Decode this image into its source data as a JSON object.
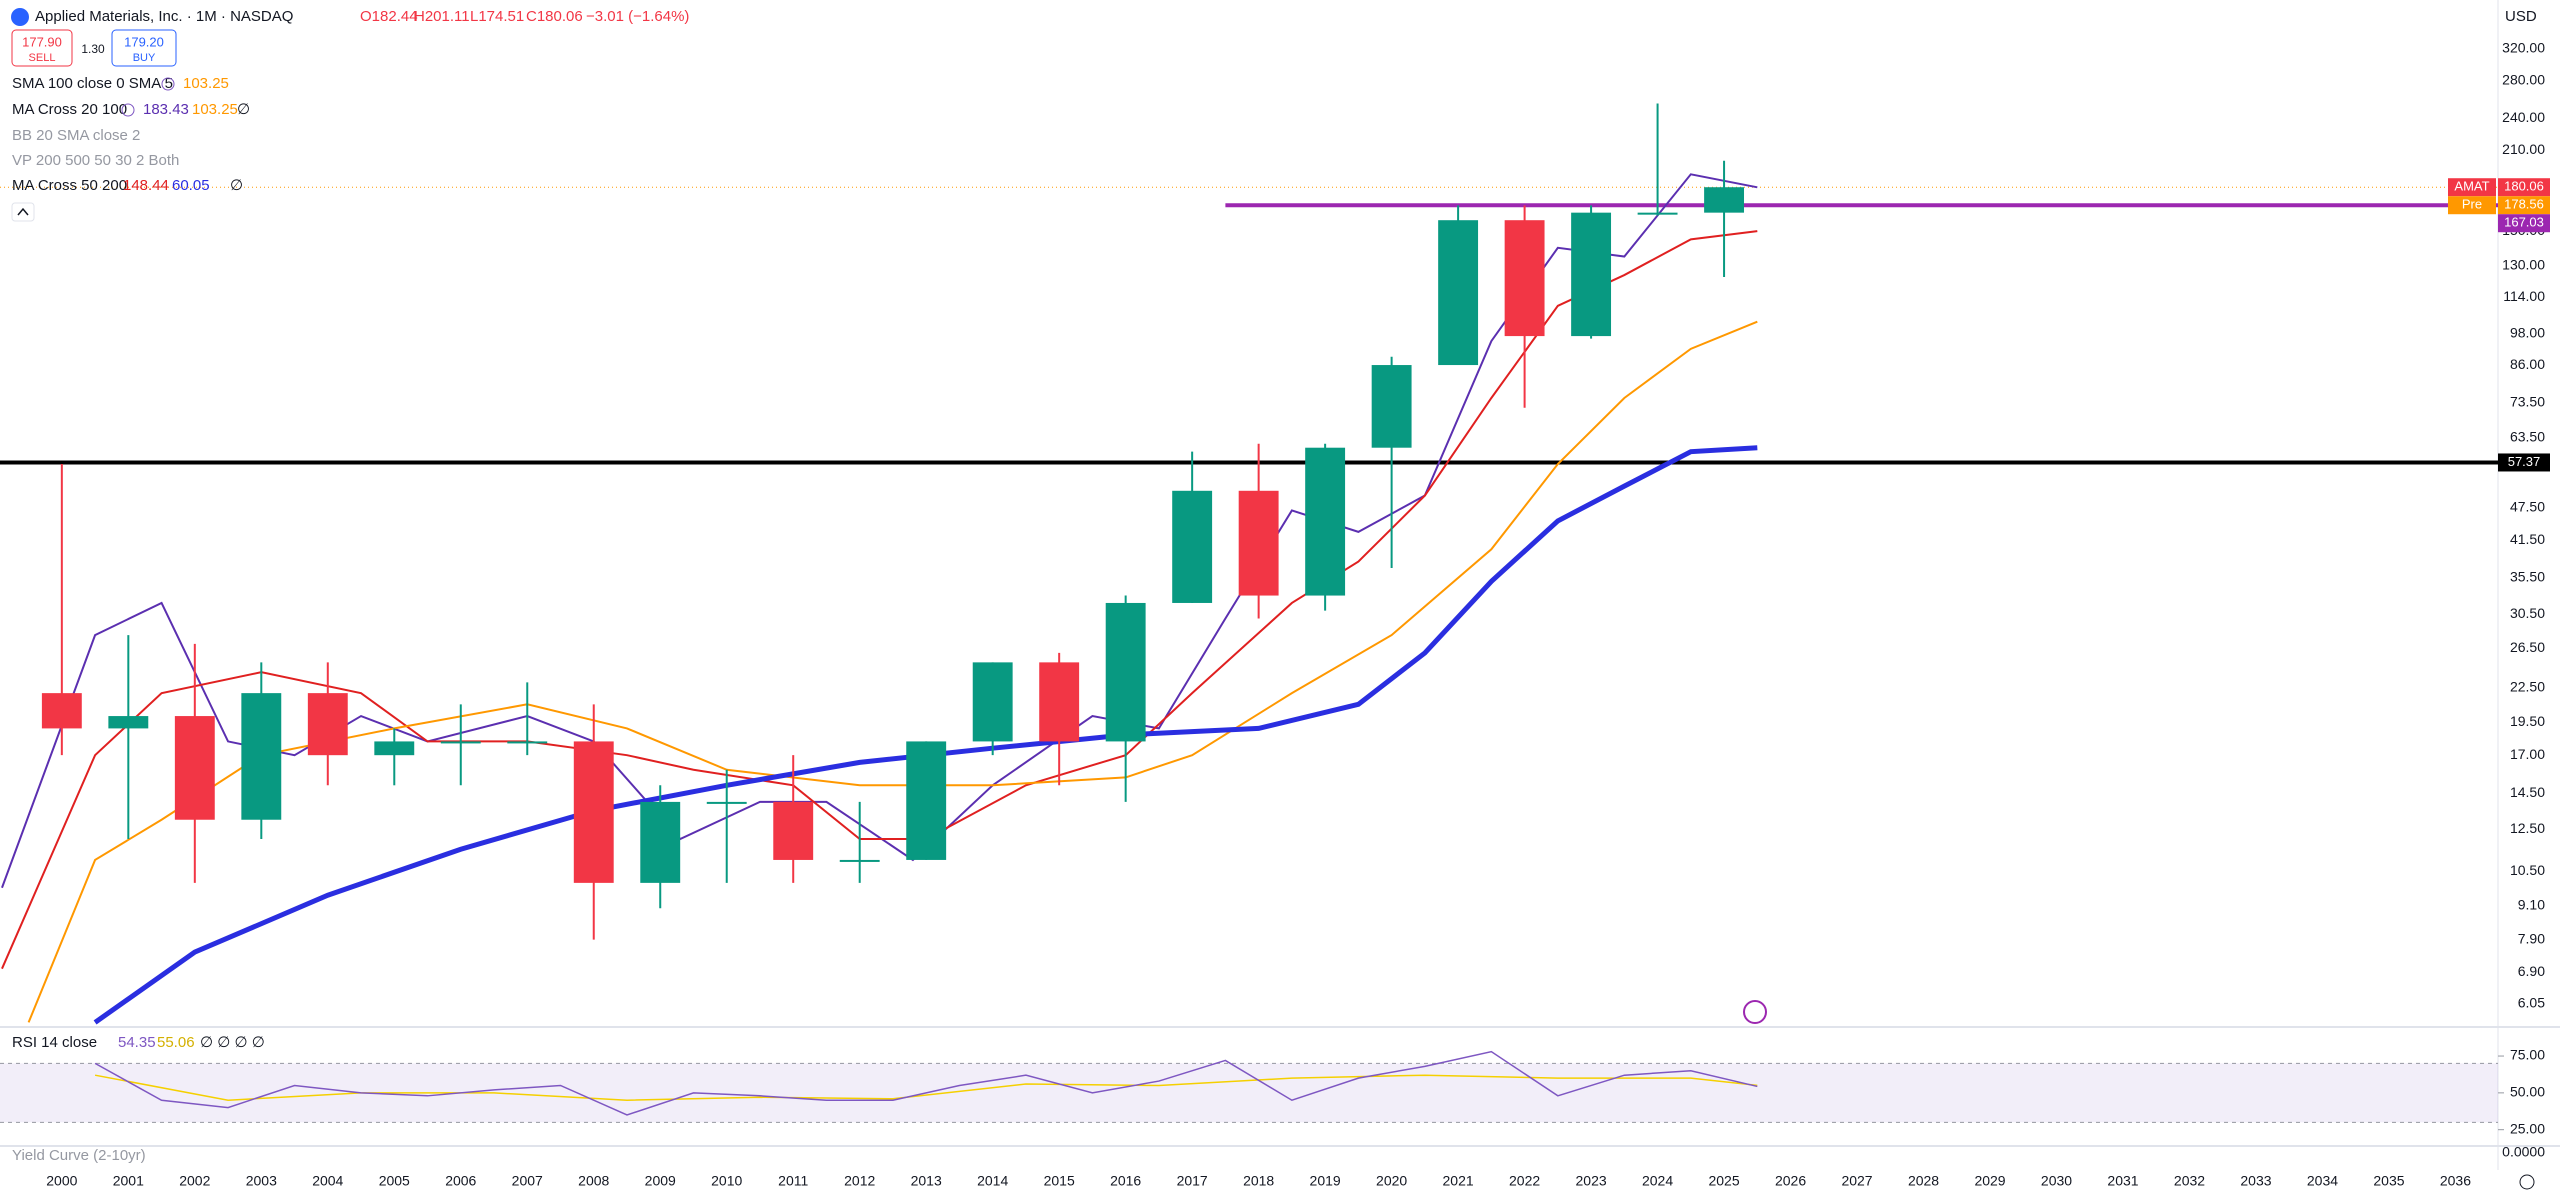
{
  "header": {
    "title": "Applied Materials, Inc. · 1M · NASDAQ",
    "open": "O182.44",
    "high": "H201.11",
    "low": "L174.51",
    "close": "C180.06",
    "change": "−3.01 (−1.64%)",
    "currency": "USD"
  },
  "trade": {
    "sell_price": "177.90",
    "sell": "SELL",
    "spread": "1.30",
    "buy_price": "179.20",
    "buy": "BUY"
  },
  "legend": [
    {
      "label": "SMA 100 close 0 SMA 5",
      "values": [
        "103.25"
      ]
    },
    {
      "label": "MA Cross 20 100",
      "values": [
        "183.43",
        "103.25",
        "∅"
      ]
    },
    {
      "label": "BB 20 SMA close 2"
    },
    {
      "label": "VP 200 500 50 30 2 Both"
    },
    {
      "label": "MA Cross 50 200",
      "values": [
        "148.44",
        "60.05",
        "∅"
      ]
    }
  ],
  "chart_data": {
    "type": "candlestick",
    "x": [
      2000,
      2001,
      2002,
      2003,
      2004,
      2005,
      2006,
      2007,
      2008,
      2009,
      2010,
      2011,
      2012,
      2013,
      2014,
      2015,
      2016,
      2017,
      2018,
      2019,
      2020,
      2021,
      2022,
      2023,
      2024,
      2025
    ],
    "open": [
      22,
      19,
      20,
      13,
      22,
      17,
      18,
      18,
      18,
      10,
      14,
      14,
      11,
      11,
      18,
      25,
      18,
      32,
      51,
      33,
      61,
      86,
      157,
      97,
      162,
      162
    ],
    "high": [
      57,
      28,
      27,
      25,
      25,
      19,
      21,
      23,
      21,
      15,
      16,
      17,
      14,
      18,
      25,
      26,
      33,
      60,
      62,
      62,
      89,
      167,
      167,
      167,
      255,
      201
    ],
    "low": [
      17,
      12,
      10,
      12,
      15,
      15,
      15,
      17,
      7.9,
      9,
      10,
      10,
      10,
      11,
      17,
      15,
      14,
      32,
      30,
      31,
      37,
      86,
      72,
      96,
      160,
      124
    ],
    "close": [
      19,
      20,
      13,
      22,
      17,
      18,
      18,
      18,
      10,
      14,
      14,
      11,
      11,
      18,
      25,
      18,
      32,
      51,
      33,
      61,
      86,
      157,
      97,
      162,
      162,
      180.06
    ],
    "up_color": "#089981",
    "down_color": "#f23645",
    "series": [
      {
        "color": "#5b2fb0",
        "width": 2,
        "x": [
          1999.1,
          2000.5,
          2001.5,
          2002.5,
          2003.5,
          2004.5,
          2005.5,
          2007,
          2008,
          2009.3,
          2010.5,
          2011.5,
          2012.8,
          2014,
          2015.5,
          2016.5,
          2017.5,
          2018.5,
          2019.5,
          2020.5,
          2021.5,
          2022.5,
          2023.5,
          2024.5,
          2025.5
        ],
        "values": [
          9.8,
          28,
          32,
          18,
          17,
          20,
          18,
          20,
          18,
          12,
          14,
          14,
          11,
          15,
          20,
          19,
          30,
          47,
          43,
          50,
          95,
          140,
          135,
          190,
          180
        ]
      },
      {
        "color": "#e02020",
        "width": 2,
        "x": [
          1999.1,
          2000.5,
          2001.5,
          2003,
          2004.5,
          2005.5,
          2007,
          2008.5,
          2009.5,
          2011,
          2012,
          2013,
          2014.5,
          2016,
          2017,
          2018.5,
          2019.5,
          2020.5,
          2021.5,
          2022.5,
          2023.5,
          2024.5,
          2025.5
        ],
        "values": [
          7,
          17,
          22,
          24,
          22,
          18,
          18,
          17,
          16,
          15,
          12,
          12,
          15,
          17,
          22,
          32,
          38,
          50,
          75,
          110,
          125,
          145,
          150
        ]
      },
      {
        "color": "#ff9800",
        "width": 2,
        "x": [
          1999.5,
          2000.5,
          2001.5,
          2003,
          2005,
          2007,
          2008.5,
          2010,
          2012,
          2014,
          2016,
          2017,
          2018.5,
          2020,
          2021.5,
          2022.5,
          2023.5,
          2024.5,
          2025.5
        ],
        "values": [
          5.6,
          11,
          13,
          17,
          19,
          21,
          19,
          16,
          15,
          15,
          15.5,
          17,
          22,
          28,
          40,
          57,
          75,
          92,
          103
        ]
      },
      {
        "color": "#2a2ee0",
        "width": 5,
        "x": [
          2000.5,
          2002,
          2004,
          2006,
          2008,
          2010,
          2012,
          2014,
          2016,
          2018,
          2019.5,
          2020.5,
          2021.5,
          2022.5,
          2023.5,
          2024.5,
          2025.5
        ],
        "values": [
          5.6,
          7.5,
          9.5,
          11.5,
          13.5,
          15,
          16.5,
          17.5,
          18.5,
          19,
          21,
          26,
          35,
          45,
          52,
          60,
          61
        ]
      }
    ],
    "hlines": [
      {
        "value": 57.37,
        "color": "#000000"
      },
      {
        "value": 167.03,
        "color": "#9c27b0",
        "start": 2017.5
      }
    ],
    "last_price": {
      "label": "AMAT",
      "value": 180.06,
      "color": "#f23645"
    },
    "pre": {
      "label": "Pre",
      "value": 178.56,
      "color": "#ff9800"
    },
    "xlim": [
      1999.07,
      2036.64
    ],
    "xticks": [
      2000,
      2001,
      2002,
      2003,
      2004,
      2005,
      2006,
      2007,
      2008,
      2009,
      2010,
      2011,
      2012,
      2013,
      2014,
      2015,
      2016,
      2017,
      2018,
      2019,
      2020,
      2021,
      2022,
      2023,
      2024,
      2025,
      2026,
      2027,
      2028,
      2029,
      2030,
      2031,
      2032,
      2033,
      2034,
      2035,
      2036
    ],
    "ylim": [
      5.54,
      392
    ],
    "log_scale": true,
    "yticks": [
      {
        "value": 320,
        "label": "320.00"
      },
      {
        "value": 280,
        "label": "280.00"
      },
      {
        "value": 240,
        "label": "240.00"
      },
      {
        "value": 210,
        "label": "210.00"
      },
      {
        "value": 150,
        "label": "150.00"
      },
      {
        "value": 130,
        "label": "130.00"
      },
      {
        "value": 114,
        "label": "114.00"
      },
      {
        "value": 98,
        "label": "98.00"
      },
      {
        "value": 86,
        "label": "86.00"
      },
      {
        "value": 73.5,
        "label": "73.50"
      },
      {
        "value": 63.5,
        "label": "63.50"
      },
      {
        "value": 47.5,
        "label": "47.50"
      },
      {
        "value": 41.5,
        "label": "41.50"
      },
      {
        "value": 35.5,
        "label": "35.50"
      },
      {
        "value": 30.5,
        "label": "30.50"
      },
      {
        "value": 26.5,
        "label": "26.50"
      },
      {
        "value": 22.5,
        "label": "22.50"
      },
      {
        "value": 19.5,
        "label": "19.50"
      },
      {
        "value": 17,
        "label": "17.00"
      },
      {
        "value": 14.5,
        "label": "14.50"
      },
      {
        "value": 12.5,
        "label": "12.50"
      },
      {
        "value": 10.5,
        "label": "10.50"
      },
      {
        "value": 9.1,
        "label": "9.10"
      },
      {
        "value": 7.9,
        "label": "7.90"
      },
      {
        "value": 6.9,
        "label": "6.90"
      },
      6.05
    ]
  },
  "rsi": {
    "label": "RSI 14 close",
    "value": "54.35",
    "ma_value": "55.06",
    "extra": "∅ ∅ ∅ ∅",
    "x": [
      2000.5,
      2001.5,
      2002.5,
      2003.5,
      2004.5,
      2005.5,
      2006.5,
      2007.5,
      2008.5,
      2009.5,
      2010.5,
      2011.5,
      2012.5,
      2013.5,
      2014.5,
      2015.5,
      2016.5,
      2017.5,
      2018.5,
      2019.5,
      2020.5,
      2021.5,
      2022.5,
      2023.5,
      2024.5,
      2025.5
    ],
    "values": [
      70,
      45,
      40,
      55,
      50,
      48,
      52,
      55,
      35,
      50,
      48,
      45,
      45,
      55,
      62,
      50,
      58,
      72,
      45,
      60,
      68,
      78,
      48,
      62,
      65,
      54.35
    ],
    "color": "#7e57c2",
    "ma_x": [
      2000.5,
      2002.5,
      2004.5,
      2006.5,
      2008.5,
      2010.5,
      2012.5,
      2014.5,
      2016.5,
      2018.5,
      2020.5,
      2022.5,
      2024.5,
      2025.5
    ],
    "ma_values": [
      62,
      45,
      50,
      50,
      45,
      47,
      46,
      56,
      55,
      60,
      62,
      60,
      60,
      55.06
    ],
    "ma_color": "#f5d000",
    "band": [
      30,
      70
    ],
    "ylim": [
      18,
      92
    ],
    "yticks": [
      {
        "value": 75,
        "label": "75.00"
      },
      {
        "value": 50,
        "label": "50.00"
      },
      {
        "value": 25,
        "label": "25.00"
      }
    ]
  },
  "yield": {
    "label": "Yield Curve (2-10yr)",
    "axis_label": "0.0000"
  }
}
